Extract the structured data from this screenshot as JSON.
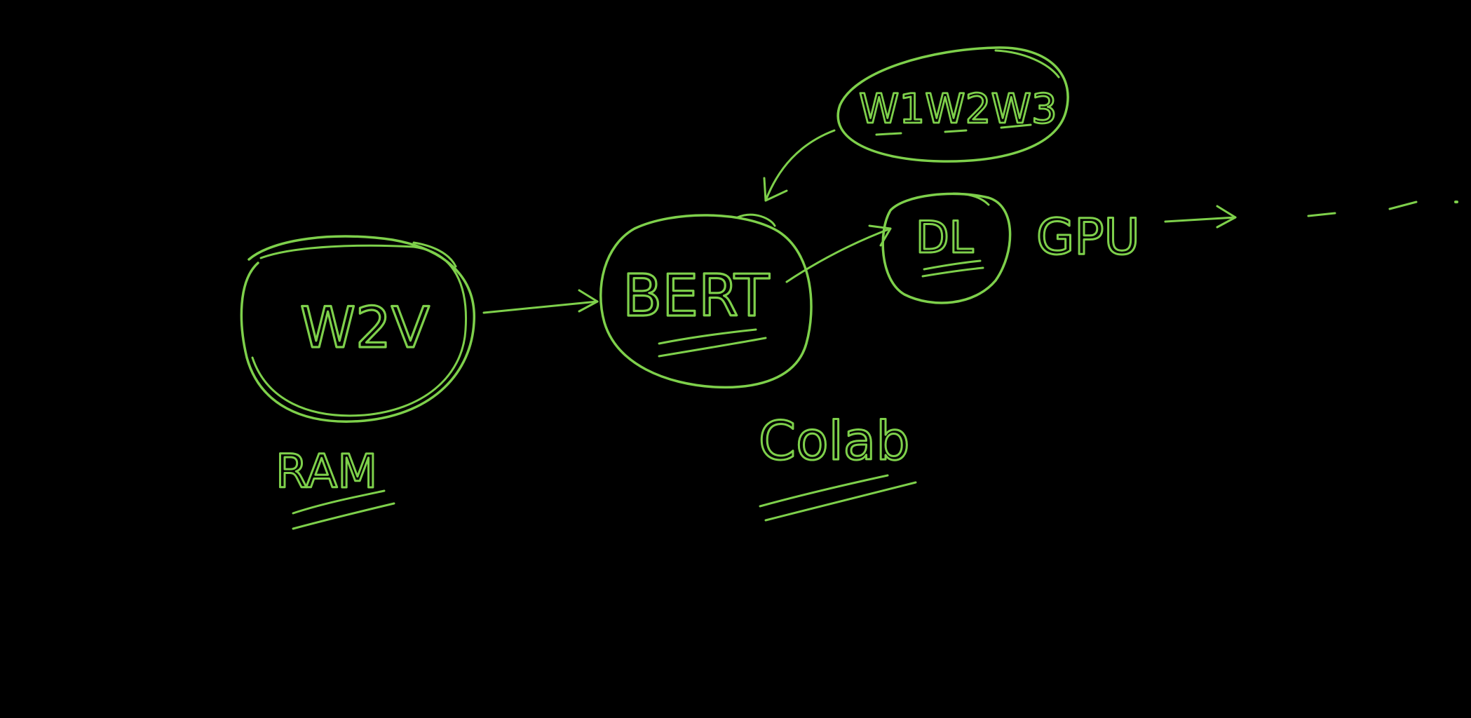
{
  "colors": {
    "background": "#000000",
    "ink": "#7ed04b"
  },
  "nodes": {
    "w2v": {
      "label": "W2V",
      "caption": "RAM"
    },
    "bert": {
      "label": "BERT",
      "caption": "Colab"
    },
    "weights": {
      "label": "W1W2W3"
    },
    "dl": {
      "label": "DL"
    }
  },
  "annotations": {
    "gpu": "GPU"
  }
}
